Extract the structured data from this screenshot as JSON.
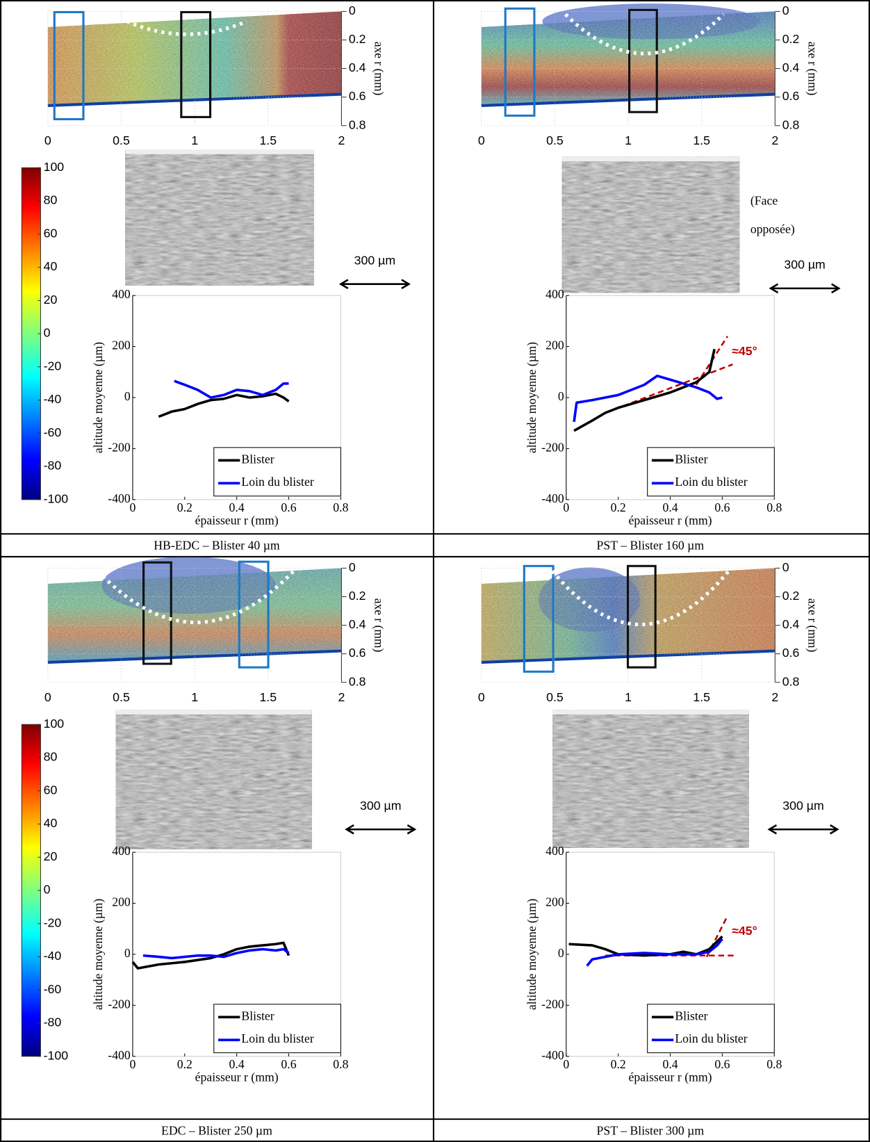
{
  "panels": [
    {
      "caption": "HB-EDC – Blister 40 µm",
      "scale_bar": "300 µm",
      "map": {
        "xlim": [
          0,
          2
        ],
        "ylim": [
          0,
          0.8
        ],
        "xticks": [
          0,
          0.5,
          1,
          1.5,
          2
        ],
        "yticks": [
          0,
          0.2,
          0.4,
          0.6,
          0.8
        ],
        "ylabel": "axe r (mm)"
      },
      "colorbar": {
        "clim": [
          -100,
          100
        ],
        "ticks": [
          100,
          80,
          60,
          40,
          20,
          0,
          -20,
          -40,
          -60,
          -80,
          -100
        ]
      }
    },
    {
      "caption": "PST – Blister 160 µm",
      "scale_bar": "300 µm",
      "note": [
        "(Face",
        "opposée)"
      ],
      "map": {
        "xlim": [
          0,
          2
        ],
        "ylim": [
          0,
          0.8
        ],
        "xticks": [
          0,
          0.5,
          1,
          1.5,
          2
        ],
        "yticks": [
          0,
          0.2,
          0.4,
          0.6,
          0.8
        ],
        "ylabel": "axe r (mm)"
      }
    },
    {
      "caption": "EDC – Blister 250 µm",
      "scale_bar": "300 µm",
      "map": {
        "xlim": [
          0,
          2
        ],
        "ylim": [
          0,
          0.8
        ],
        "xticks": [
          0,
          0.5,
          1,
          1.5,
          2
        ],
        "yticks": [
          0,
          0.2,
          0.4,
          0.6,
          0.8
        ],
        "ylabel": "axe r (mm)"
      },
      "colorbar": {
        "clim": [
          -100,
          100
        ],
        "ticks": [
          100,
          80,
          60,
          40,
          20,
          0,
          -20,
          -40,
          -60,
          -80,
          -100
        ]
      }
    },
    {
      "caption": "PST – Blister 300 µm",
      "scale_bar": "300 µm",
      "map": {
        "xlim": [
          0,
          2
        ],
        "ylim": [
          0,
          0.8
        ],
        "xticks": [
          0,
          0.5,
          1,
          1.5,
          2
        ],
        "yticks": [
          0,
          0.2,
          0.4,
          0.6,
          0.8
        ],
        "ylabel": "axe r (mm)"
      }
    }
  ],
  "chart_data": [
    {
      "type": "line",
      "x_label": "épaisseur r (mm)",
      "y_label": "altitude moyenne (µm)",
      "xlim": [
        0,
        0.8
      ],
      "ylim": [
        -400,
        400
      ],
      "xticks": [
        0,
        0.2,
        0.4,
        0.6,
        0.8
      ],
      "yticks": [
        400,
        200,
        0,
        -200,
        -400
      ],
      "series": [
        {
          "name": "Blister",
          "color": "#000000",
          "x": [
            0.1,
            0.15,
            0.2,
            0.25,
            0.3,
            0.35,
            0.4,
            0.45,
            0.5,
            0.55,
            0.58,
            0.6
          ],
          "values": [
            -75,
            -55,
            -45,
            -25,
            -10,
            -5,
            10,
            0,
            5,
            15,
            0,
            -15
          ]
        },
        {
          "name": "Loin du blister",
          "color": "#0000ff",
          "x": [
            0.16,
            0.2,
            0.25,
            0.3,
            0.35,
            0.4,
            0.45,
            0.5,
            0.55,
            0.58,
            0.6
          ],
          "values": [
            65,
            50,
            30,
            0,
            10,
            30,
            25,
            10,
            30,
            55,
            55
          ]
        }
      ]
    },
    {
      "type": "line",
      "x_label": "épaisseur r (mm)",
      "y_label": "altitude moyenne (µm)",
      "xlim": [
        0,
        0.8
      ],
      "ylim": [
        -400,
        400
      ],
      "xticks": [
        0,
        0.2,
        0.4,
        0.6,
        0.8
      ],
      "yticks": [
        400,
        200,
        0,
        -200,
        -400
      ],
      "annotation": "≈45°",
      "guide_color": "#c00000",
      "guides": [
        {
          "x": [
            0.5,
            0.62
          ],
          "values": [
            50,
            240
          ]
        },
        {
          "x": [
            0.15,
            0.64
          ],
          "values": [
            -60,
            130
          ]
        }
      ],
      "series": [
        {
          "name": "Blister",
          "color": "#000000",
          "x": [
            0.03,
            0.1,
            0.15,
            0.2,
            0.3,
            0.4,
            0.45,
            0.5,
            0.55,
            0.57
          ],
          "values": [
            -130,
            -90,
            -60,
            -40,
            -10,
            20,
            40,
            60,
            100,
            190
          ]
        },
        {
          "name": "Loin du blister",
          "color": "#0000ff",
          "x": [
            0.03,
            0.04,
            0.1,
            0.2,
            0.3,
            0.35,
            0.4,
            0.5,
            0.55,
            0.58,
            0.6
          ],
          "values": [
            -95,
            -20,
            -10,
            10,
            50,
            85,
            70,
            40,
            20,
            -5,
            0
          ]
        }
      ]
    },
    {
      "type": "line",
      "x_label": "épaisseur r (mm)",
      "y_label": "altitude moyenne (µm)",
      "xlim": [
        0,
        0.8
      ],
      "ylim": [
        -400,
        400
      ],
      "xticks": [
        0,
        0.2,
        0.4,
        0.6,
        0.8
      ],
      "yticks": [
        400,
        200,
        0,
        -200,
        -400
      ],
      "series": [
        {
          "name": "Blister",
          "color": "#000000",
          "x": [
            0,
            0.02,
            0.1,
            0.2,
            0.3,
            0.35,
            0.4,
            0.45,
            0.5,
            0.55,
            0.58,
            0.6
          ],
          "values": [
            -30,
            -55,
            -40,
            -30,
            -15,
            0,
            20,
            30,
            35,
            40,
            45,
            -5
          ]
        },
        {
          "name": "Loin du blister",
          "color": "#0000ff",
          "x": [
            0.04,
            0.1,
            0.15,
            0.2,
            0.25,
            0.3,
            0.35,
            0.4,
            0.45,
            0.5,
            0.55,
            0.58,
            0.6
          ],
          "values": [
            -5,
            -10,
            -15,
            -10,
            -5,
            -5,
            -10,
            5,
            15,
            20,
            15,
            20,
            5
          ]
        }
      ]
    },
    {
      "type": "line",
      "x_label": "épaisseur r (mm)",
      "y_label": "altitude moyenne (µm)",
      "xlim": [
        0,
        0.8
      ],
      "ylim": [
        -400,
        400
      ],
      "xticks": [
        0,
        0.2,
        0.4,
        0.6,
        0.8
      ],
      "yticks": [
        400,
        200,
        0,
        -200,
        -400
      ],
      "annotation": "≈45°",
      "guide_color": "#c00000",
      "guides": [
        {
          "x": [
            0.54,
            0.62
          ],
          "values": [
            -10,
            150
          ]
        },
        {
          "x": [
            0.15,
            0.65
          ],
          "values": [
            -5,
            -5
          ]
        }
      ],
      "series": [
        {
          "name": "Blister",
          "color": "#000000",
          "x": [
            0.01,
            0.1,
            0.15,
            0.2,
            0.3,
            0.4,
            0.45,
            0.5,
            0.55,
            0.58,
            0.6
          ],
          "values": [
            40,
            35,
            20,
            0,
            -5,
            0,
            10,
            0,
            20,
            50,
            70
          ]
        },
        {
          "name": "Loin du blister",
          "color": "#0000ff",
          "x": [
            0.08,
            0.1,
            0.15,
            0.2,
            0.3,
            0.4,
            0.5,
            0.55,
            0.58,
            0.6
          ],
          "values": [
            -45,
            -20,
            -10,
            0,
            5,
            0,
            0,
            10,
            35,
            60
          ]
        }
      ]
    }
  ]
}
